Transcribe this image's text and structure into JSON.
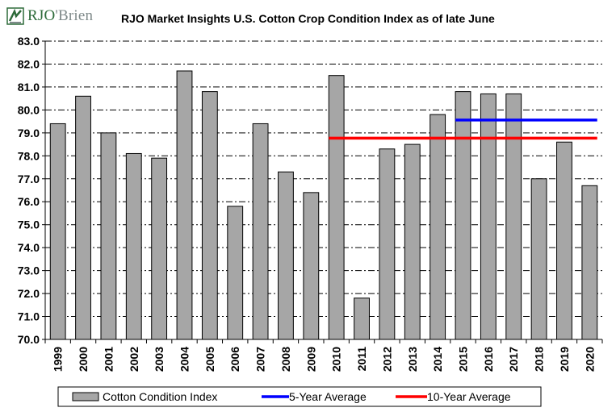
{
  "header": {
    "logo_text": "RJO'Brien",
    "logo_text_main": "RJO",
    "logo_text_rest": "'Brien",
    "title": "RJO Market Insights U.S. Cotton Crop Condition Index as of late June"
  },
  "colors": {
    "bar_fill": "#a6a6a6",
    "bar_stroke": "#000000",
    "five_year_line": "#0000ff",
    "ten_year_line": "#ff0000",
    "brand_green": "#2e6b3a",
    "brand_gray": "#7f8a8a"
  },
  "chart_data": {
    "type": "bar",
    "title": "RJO Market Insights U.S. Cotton Crop Condition Index as of late June",
    "categories": [
      "1999",
      "2000",
      "2001",
      "2002",
      "2003",
      "2004",
      "2005",
      "2006",
      "2007",
      "2008",
      "2009",
      "2010",
      "2011",
      "2012",
      "2013",
      "2014",
      "2015",
      "2016",
      "2017",
      "2018",
      "2019",
      "2020"
    ],
    "series": [
      {
        "name": "Cotton Condition Index",
        "values": [
          79.4,
          80.6,
          79.0,
          78.1,
          77.9,
          81.7,
          80.8,
          75.8,
          79.4,
          77.3,
          76.4,
          81.5,
          71.8,
          78.3,
          78.5,
          79.8,
          80.8,
          80.7,
          80.7,
          77.0,
          78.6,
          76.7
        ]
      }
    ],
    "reference_lines": [
      {
        "name": "5-Year Average",
        "value": 79.56,
        "from": "2015",
        "to": "2020",
        "color": "#0000ff"
      },
      {
        "name": "10-Year Average",
        "value": 78.77,
        "from": "2010",
        "to": "2020",
        "color": "#ff0000"
      }
    ],
    "ylim": [
      70.0,
      83.0
    ],
    "yticks": [
      "70.0",
      "71.0",
      "72.0",
      "73.0",
      "74.0",
      "75.0",
      "76.0",
      "77.0",
      "78.0",
      "79.0",
      "80.0",
      "81.0",
      "82.0",
      "83.0"
    ],
    "grid": "horizontal dash-dot",
    "legend": [
      "Cotton Condition Index",
      "5-Year Average",
      "10-Year Average"
    ],
    "legend_position": "bottom"
  }
}
